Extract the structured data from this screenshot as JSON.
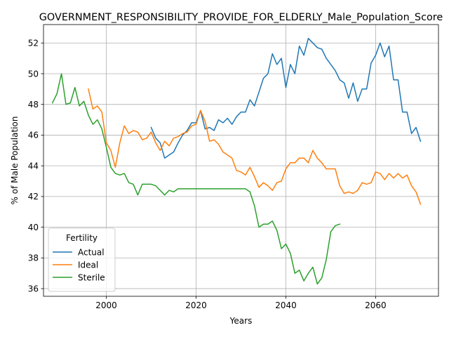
{
  "chart_data": {
    "type": "line",
    "title": "GOVERNMENT_RESPONSIBILITY_PROVIDE_FOR_ELDERLY_Male_Population_Score",
    "xlabel": "Years",
    "ylabel": "% of Male Population",
    "xlim": [
      1986,
      2074
    ],
    "ylim": [
      35.5,
      53.2
    ],
    "xticks": [
      2000,
      2020,
      2040,
      2060
    ],
    "yticks": [
      36,
      38,
      40,
      42,
      44,
      46,
      48,
      50,
      52
    ],
    "grid": true,
    "legend": {
      "title": "Fertility",
      "placement": "lower-left"
    },
    "series": [
      {
        "name": "Actual",
        "color": "#1f77b4",
        "x": [
          2010,
          2011,
          2012,
          2013,
          2014,
          2015,
          2016,
          2017,
          2018,
          2019,
          2020,
          2021,
          2022,
          2023,
          2024,
          2025,
          2026,
          2027,
          2028,
          2029,
          2030,
          2031,
          2032,
          2033,
          2034,
          2035,
          2036,
          2037,
          2038,
          2039,
          2040,
          2041,
          2042,
          2043,
          2044,
          2045,
          2046,
          2047,
          2048,
          2049,
          2050,
          2051,
          2052,
          2053,
          2054,
          2055,
          2056,
          2057,
          2058,
          2059,
          2060,
          2061,
          2062,
          2063,
          2064,
          2065,
          2066,
          2067,
          2068,
          2069,
          2070
        ],
        "values": [
          46.5,
          45.8,
          45.5,
          44.5,
          44.7,
          44.9,
          45.5,
          46.0,
          46.3,
          46.8,
          46.8,
          47.6,
          46.4,
          46.5,
          46.3,
          47.0,
          46.8,
          47.1,
          46.7,
          47.2,
          47.5,
          47.5,
          48.3,
          47.9,
          48.8,
          49.7,
          50.0,
          51.3,
          50.6,
          51.0,
          49.1,
          50.6,
          50.0,
          51.8,
          51.2,
          52.3,
          52.0,
          51.7,
          51.6,
          51.0,
          50.6,
          50.2,
          49.6,
          49.4,
          48.4,
          49.4,
          48.2,
          49.0,
          49.0,
          50.7,
          51.2,
          52.0,
          51.1,
          51.8,
          49.6,
          49.6,
          47.5,
          47.5,
          46.1,
          46.5,
          45.6
        ]
      },
      {
        "name": "Ideal",
        "color": "#ff7f0e",
        "x": [
          1996,
          1997,
          1998,
          1999,
          2000,
          2001,
          2002,
          2003,
          2004,
          2005,
          2006,
          2007,
          2008,
          2009,
          2010,
          2011,
          2012,
          2013,
          2014,
          2015,
          2016,
          2017,
          2018,
          2019,
          2020,
          2021,
          2022,
          2023,
          2024,
          2025,
          2026,
          2027,
          2028,
          2029,
          2030,
          2031,
          2032,
          2033,
          2034,
          2035,
          2036,
          2037,
          2038,
          2039,
          2040,
          2041,
          2042,
          2043,
          2044,
          2045,
          2046,
          2047,
          2048,
          2049,
          2050,
          2051,
          2052,
          2053,
          2054,
          2055,
          2056,
          2057,
          2058,
          2059,
          2060,
          2061,
          2062,
          2063,
          2064,
          2065,
          2066,
          2067,
          2068,
          2069,
          2070
        ],
        "values": [
          49.0,
          47.7,
          47.9,
          47.5,
          45.5,
          45.0,
          43.9,
          45.5,
          46.6,
          46.1,
          46.3,
          46.2,
          45.7,
          45.8,
          46.2,
          45.5,
          45.0,
          45.6,
          45.3,
          45.8,
          45.9,
          46.1,
          46.2,
          46.6,
          46.7,
          47.6,
          46.9,
          45.6,
          45.7,
          45.4,
          44.9,
          44.7,
          44.5,
          43.7,
          43.6,
          43.4,
          43.9,
          43.3,
          42.6,
          42.9,
          42.7,
          42.4,
          42.9,
          43.0,
          43.8,
          44.2,
          44.2,
          44.5,
          44.5,
          44.2,
          45.0,
          44.5,
          44.2,
          43.8,
          43.8,
          43.8,
          42.7,
          42.2,
          42.3,
          42.2,
          42.4,
          42.9,
          42.8,
          42.9,
          43.6,
          43.5,
          43.1,
          43.5,
          43.2,
          43.5,
          43.2,
          43.4,
          42.7,
          42.3,
          41.5
        ]
      },
      {
        "name": "Sterile",
        "color": "#2ca02c",
        "x": [
          1988,
          1989,
          1990,
          1991,
          1992,
          1993,
          1994,
          1995,
          1996,
          1997,
          1998,
          1999,
          2000,
          2001,
          2002,
          2003,
          2004,
          2005,
          2006,
          2007,
          2008,
          2009,
          2010,
          2011,
          2012,
          2013,
          2014,
          2015,
          2016,
          2017,
          2018,
          2019,
          2020,
          2021,
          2022,
          2023,
          2024,
          2025,
          2026,
          2027,
          2028,
          2029,
          2030,
          2031,
          2032,
          2033,
          2034,
          2035,
          2036,
          2037,
          2038,
          2039,
          2040,
          2041,
          2042,
          2043,
          2044,
          2045,
          2046,
          2047,
          2048,
          2049,
          2050,
          2051,
          2052
        ],
        "values": [
          48.1,
          48.7,
          50.0,
          48.0,
          48.1,
          49.1,
          47.9,
          48.2,
          47.3,
          46.7,
          47.0,
          46.4,
          45.2,
          43.9,
          43.5,
          43.4,
          43.5,
          42.9,
          42.8,
          42.1,
          42.8,
          42.8,
          42.8,
          42.7,
          42.4,
          42.1,
          42.4,
          42.3,
          42.5,
          42.5,
          42.5,
          42.5,
          42.5,
          42.5,
          42.5,
          42.5,
          42.5,
          42.5,
          42.5,
          42.5,
          42.5,
          42.5,
          42.5,
          42.5,
          42.3,
          41.4,
          40.0,
          40.2,
          40.2,
          40.4,
          39.8,
          38.6,
          38.9,
          38.3,
          37.0,
          37.2,
          36.5,
          37.0,
          37.4,
          36.3,
          36.7,
          37.9,
          39.7,
          40.1,
          40.2
        ]
      }
    ]
  }
}
